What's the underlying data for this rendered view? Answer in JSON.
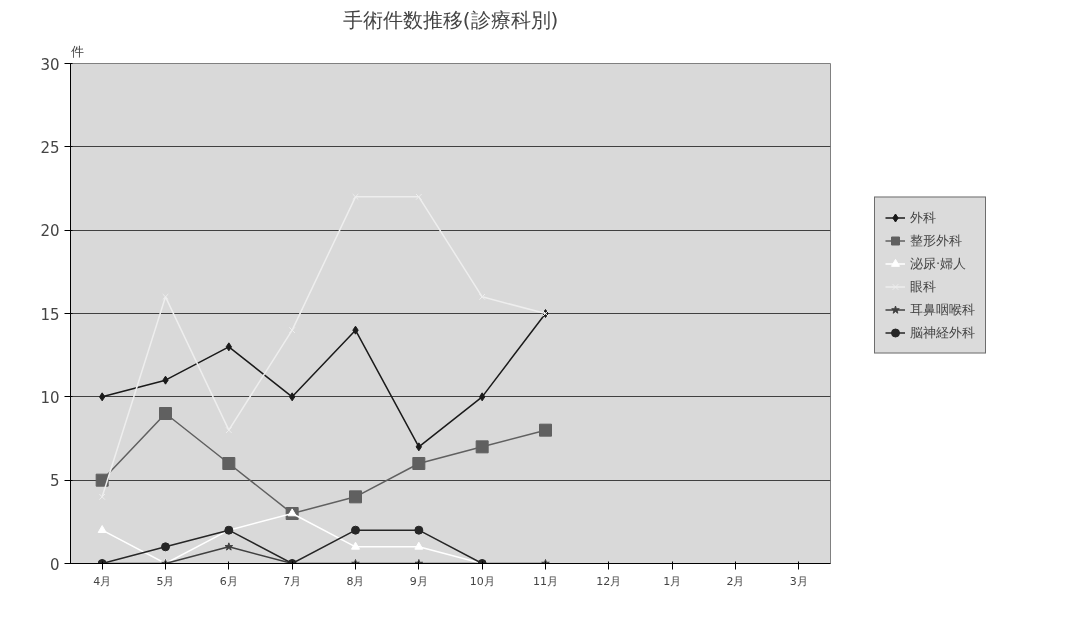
{
  "chart_data": {
    "type": "line",
    "title": "手術件数推移(診療科別)",
    "ylabel": "件",
    "categories": [
      "4月",
      "5月",
      "6月",
      "7月",
      "8月",
      "9月",
      "10月",
      "11月",
      "12月",
      "1月",
      "2月",
      "3月"
    ],
    "ylim": [
      0,
      30
    ],
    "yticks": [
      0,
      5,
      10,
      15,
      20,
      25,
      30
    ],
    "grid": "y",
    "legend": "right",
    "series": [
      {
        "name": "外科",
        "color": "#1a1a1a",
        "marker": "diamond",
        "values": [
          10,
          11,
          13,
          10,
          14,
          7,
          10,
          15,
          null,
          null,
          null,
          null
        ]
      },
      {
        "name": "整形外科",
        "color": "#606060",
        "marker": "square",
        "values": [
          5,
          9,
          6,
          3,
          4,
          6,
          7,
          8,
          null,
          null,
          null,
          null
        ]
      },
      {
        "name": "泌尿·婦人",
        "color": "#ffffff",
        "marker": "triangle",
        "values": [
          2,
          0,
          2,
          3,
          1,
          1,
          0,
          null,
          null,
          null,
          null,
          null
        ]
      },
      {
        "name": "眼科",
        "color": "#eeeeee",
        "marker": "cross",
        "values": [
          4,
          16,
          8,
          14,
          22,
          22,
          16,
          15,
          null,
          null,
          null,
          null
        ]
      },
      {
        "name": "耳鼻咽喉科",
        "color": "#404040",
        "marker": "star",
        "values": [
          0,
          0,
          1,
          0,
          0,
          0,
          0,
          0,
          null,
          null,
          null,
          null
        ]
      },
      {
        "name": "脳神経外科",
        "color": "#262626",
        "marker": "circle",
        "values": [
          0,
          1,
          2,
          0,
          2,
          2,
          0,
          null,
          null,
          null,
          null,
          null
        ]
      }
    ]
  }
}
